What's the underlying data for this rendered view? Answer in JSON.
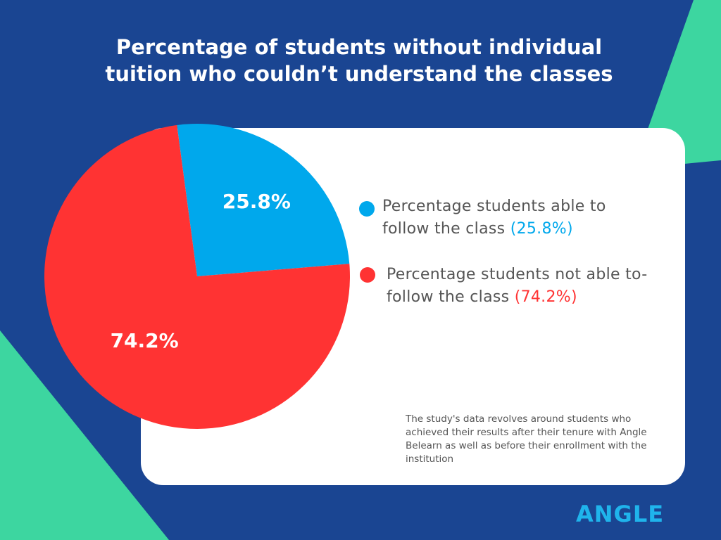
{
  "chart_data": {
    "type": "pie",
    "title": "Percentage of students without individual tuition who couldn’t understand the classes",
    "categories": [
      "Percentage students able to follow the class",
      "Percentage students not able to-follow  the class"
    ],
    "values": [
      25.8,
      74.2
    ],
    "value_labels": [
      "25.8%",
      "74.2%"
    ],
    "legend_value_labels": [
      "(25.8%)",
      "(74.2%)"
    ],
    "colors": [
      "#00a8ec",
      "#ff3333"
    ],
    "note": "The study's data revolves around students who achieved their results after their tenure with Angle Belearn as well as before their enrollment with the institution"
  },
  "brand": "ANGLE"
}
